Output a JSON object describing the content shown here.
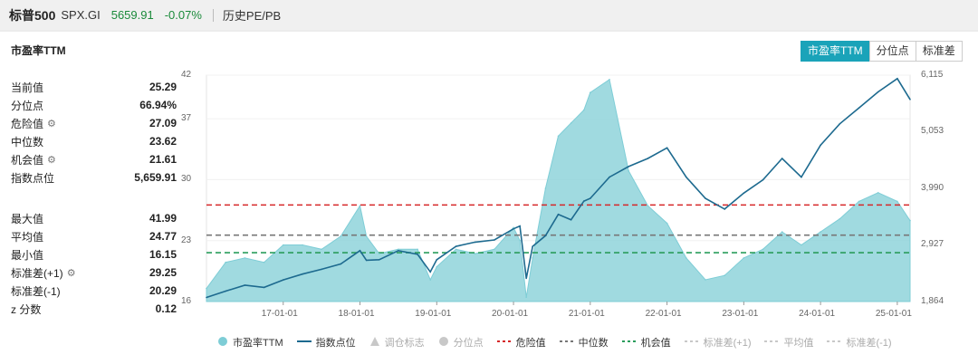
{
  "header": {
    "name": "标普500",
    "code": "SPX.GI",
    "price": "5659.91",
    "change_pct": "-0.07%",
    "link": "历史PE/PB"
  },
  "panel": {
    "title": "市盈率TTM",
    "tabs": [
      "市盈率TTM",
      "分位点",
      "标准差"
    ],
    "active_tab": 0
  },
  "stats_top": [
    {
      "label": "当前值",
      "value": "25.29",
      "gear": false
    },
    {
      "label": "分位点",
      "value": "66.94%",
      "gear": false
    },
    {
      "label": "危险值",
      "value": "27.09",
      "gear": true
    },
    {
      "label": "中位数",
      "value": "23.62",
      "gear": false
    },
    {
      "label": "机会值",
      "value": "21.61",
      "gear": true
    },
    {
      "label": "指数点位",
      "value": "5,659.91",
      "gear": false
    }
  ],
  "stats_bottom": [
    {
      "label": "最大值",
      "value": "41.99",
      "gear": false
    },
    {
      "label": "平均值",
      "value": "24.77",
      "gear": false
    },
    {
      "label": "最小值",
      "value": "16.15",
      "gear": false
    },
    {
      "label": "标准差(+1)",
      "value": "29.25",
      "gear": true
    },
    {
      "label": "标准差(-1)",
      "value": "20.29",
      "gear": false
    },
    {
      "label": "z 分数",
      "value": "0.12",
      "gear": false
    }
  ],
  "legend": [
    {
      "label": "市盈率TTM",
      "kind": "dot",
      "color": "#7ecdd6",
      "dim": false
    },
    {
      "label": "指数点位",
      "kind": "line",
      "color": "#1d6a8f",
      "dim": false
    },
    {
      "label": "调仓标志",
      "kind": "triangle",
      "color": "#c8c8c8",
      "dim": true
    },
    {
      "label": "分位点",
      "kind": "dot",
      "color": "#c8c8c8",
      "dim": true
    },
    {
      "label": "危险值",
      "kind": "dash",
      "color": "#d62728",
      "dim": false
    },
    {
      "label": "中位数",
      "kind": "dash",
      "color": "#777777",
      "dim": false
    },
    {
      "label": "机会值",
      "kind": "dash",
      "color": "#2a9d5c",
      "dim": false
    },
    {
      "label": "标准差(+1)",
      "kind": "dash",
      "color": "#c8c8c8",
      "dim": true
    },
    {
      "label": "平均值",
      "kind": "dash",
      "color": "#c8c8c8",
      "dim": true
    },
    {
      "label": "标准差(-1)",
      "kind": "dash",
      "color": "#c8c8c8",
      "dim": true
    }
  ],
  "colors": {
    "accent": "#1aa3b9",
    "pe_area": "#8fd3db",
    "index_line": "#1d6a8f",
    "danger": "#d62728",
    "median": "#777777",
    "opportunity": "#2a9d5c",
    "positive": "#1a8a3a"
  },
  "chart_data": {
    "type": "area",
    "x_ticks": [
      "17-01-01",
      "18-01-01",
      "19-01-01",
      "20-01-01",
      "21-01-01",
      "22-01-01",
      "23-01-01",
      "24-01-01",
      "25-01-01"
    ],
    "x_range": [
      "2016-01",
      "2025-03"
    ],
    "y_left_ticks": [
      "42",
      "37",
      "30",
      "23",
      "16"
    ],
    "y_left_range": [
      16,
      42
    ],
    "y_right_ticks": [
      "6,115",
      "5,053",
      "3,990",
      "2,927",
      "1,864"
    ],
    "y_right_range": [
      1864,
      6115
    ],
    "reference_lines": {
      "danger": 27.09,
      "median": 23.62,
      "opportunity": 21.61
    },
    "series": [
      {
        "name": "市盈率TTM",
        "axis": "left",
        "x": [
          "2016-01",
          "2016-04",
          "2016-07",
          "2016-10",
          "2017-01",
          "2017-04",
          "2017-07",
          "2017-10",
          "2018-01",
          "2018-02",
          "2018-04",
          "2018-07",
          "2018-10",
          "2018-12",
          "2019-01",
          "2019-04",
          "2019-07",
          "2019-10",
          "2020-01",
          "2020-02",
          "2020-03",
          "2020-04",
          "2020-06",
          "2020-08",
          "2020-10",
          "2020-12",
          "2021-01",
          "2021-04",
          "2021-07",
          "2021-10",
          "2022-01",
          "2022-04",
          "2022-07",
          "2022-10",
          "2023-01",
          "2023-04",
          "2023-07",
          "2023-10",
          "2024-01",
          "2024-04",
          "2024-07",
          "2024-10",
          "2025-01",
          "2025-03"
        ],
        "values": [
          17.5,
          20.5,
          21.0,
          20.5,
          22.5,
          22.5,
          22.0,
          23.5,
          27.0,
          23.5,
          21.5,
          22.0,
          22.0,
          18.5,
          20.0,
          22.0,
          21.5,
          22.0,
          24.5,
          23.0,
          16.5,
          21.0,
          29.0,
          35.0,
          36.5,
          38.0,
          40.0,
          41.5,
          31.0,
          27.0,
          25.0,
          21.0,
          18.5,
          19.0,
          21.0,
          22.0,
          24.0,
          22.5,
          24.0,
          25.5,
          27.5,
          28.5,
          27.5,
          25.3
        ]
      },
      {
        "name": "指数点位",
        "axis": "right",
        "x": [
          "2016-01",
          "2016-04",
          "2016-07",
          "2016-10",
          "2017-01",
          "2017-04",
          "2017-07",
          "2017-10",
          "2018-01",
          "2018-02",
          "2018-04",
          "2018-07",
          "2018-10",
          "2018-12",
          "2019-01",
          "2019-04",
          "2019-07",
          "2019-10",
          "2020-01",
          "2020-02",
          "2020-03",
          "2020-04",
          "2020-06",
          "2020-08",
          "2020-10",
          "2020-12",
          "2021-01",
          "2021-04",
          "2021-07",
          "2021-10",
          "2022-01",
          "2022-04",
          "2022-07",
          "2022-10",
          "2023-01",
          "2023-04",
          "2023-07",
          "2023-10",
          "2024-01",
          "2024-04",
          "2024-07",
          "2024-10",
          "2025-01",
          "2025-03"
        ],
        "values": [
          1940,
          2060,
          2170,
          2130,
          2270,
          2380,
          2470,
          2570,
          2820,
          2640,
          2650,
          2820,
          2750,
          2420,
          2650,
          2900,
          2980,
          3020,
          3230,
          3280,
          2300,
          2900,
          3100,
          3500,
          3400,
          3750,
          3800,
          4200,
          4400,
          4550,
          4750,
          4200,
          3800,
          3600,
          3900,
          4150,
          4550,
          4200,
          4800,
          5200,
          5500,
          5800,
          6050,
          5660
        ]
      }
    ]
  }
}
